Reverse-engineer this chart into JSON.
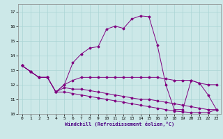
{
  "xlabel": "Windchill (Refroidissement éolien,°C)",
  "background_color": "#cce8e8",
  "line_color": "#800080",
  "xlim": [
    -0.5,
    23.5
  ],
  "ylim": [
    10,
    17.5
  ],
  "xticks": [
    0,
    1,
    2,
    3,
    4,
    5,
    6,
    7,
    8,
    9,
    10,
    11,
    12,
    13,
    14,
    15,
    16,
    17,
    18,
    19,
    20,
    21,
    22,
    23
  ],
  "yticks": [
    10,
    11,
    12,
    13,
    14,
    15,
    16,
    17
  ],
  "grid_color": "#aad4d4",
  "series1_x": [
    0,
    1,
    2,
    3,
    4,
    5,
    6,
    7,
    8,
    9,
    10,
    11,
    12,
    13,
    14,
    15,
    16,
    17,
    18,
    19,
    20,
    21,
    22,
    23
  ],
  "series1_y": [
    13.3,
    12.9,
    12.5,
    12.5,
    11.5,
    12.0,
    13.5,
    14.1,
    14.5,
    14.6,
    15.8,
    16.0,
    15.85,
    16.5,
    16.7,
    16.65,
    14.7,
    12.0,
    10.3,
    10.3,
    12.3,
    12.1,
    11.3,
    10.3
  ],
  "series2_x": [
    0,
    1,
    2,
    3,
    4,
    5,
    6,
    7,
    8,
    9,
    10,
    11,
    12,
    13,
    14,
    15,
    16,
    17,
    18,
    19,
    20,
    21,
    22,
    23
  ],
  "series2_y": [
    13.3,
    12.9,
    12.5,
    12.5,
    11.5,
    12.0,
    12.3,
    12.5,
    12.5,
    12.5,
    12.5,
    12.5,
    12.5,
    12.5,
    12.5,
    12.5,
    12.5,
    12.4,
    12.3,
    12.3,
    12.3,
    12.1,
    12.0,
    12.0
  ],
  "series3_x": [
    0,
    1,
    2,
    3,
    4,
    5,
    6,
    7,
    8,
    9,
    10,
    11,
    12,
    13,
    14,
    15,
    16,
    17,
    18,
    19,
    20,
    21,
    22,
    23
  ],
  "series3_y": [
    13.3,
    12.9,
    12.5,
    12.5,
    11.5,
    11.8,
    11.7,
    11.7,
    11.6,
    11.5,
    11.4,
    11.3,
    11.2,
    11.1,
    11.0,
    11.0,
    10.9,
    10.8,
    10.7,
    10.6,
    10.5,
    10.4,
    10.3,
    10.3
  ],
  "series4_x": [
    0,
    1,
    2,
    3,
    4,
    5,
    6,
    7,
    8,
    9,
    10,
    11,
    12,
    13,
    14,
    15,
    16,
    17,
    18,
    19,
    20,
    21,
    22,
    23
  ],
  "series4_y": [
    13.3,
    12.9,
    12.5,
    12.5,
    11.5,
    11.5,
    11.4,
    11.3,
    11.2,
    11.1,
    11.0,
    10.9,
    10.8,
    10.7,
    10.6,
    10.5,
    10.4,
    10.3,
    10.2,
    10.15,
    10.1,
    10.1,
    10.1,
    10.3
  ]
}
